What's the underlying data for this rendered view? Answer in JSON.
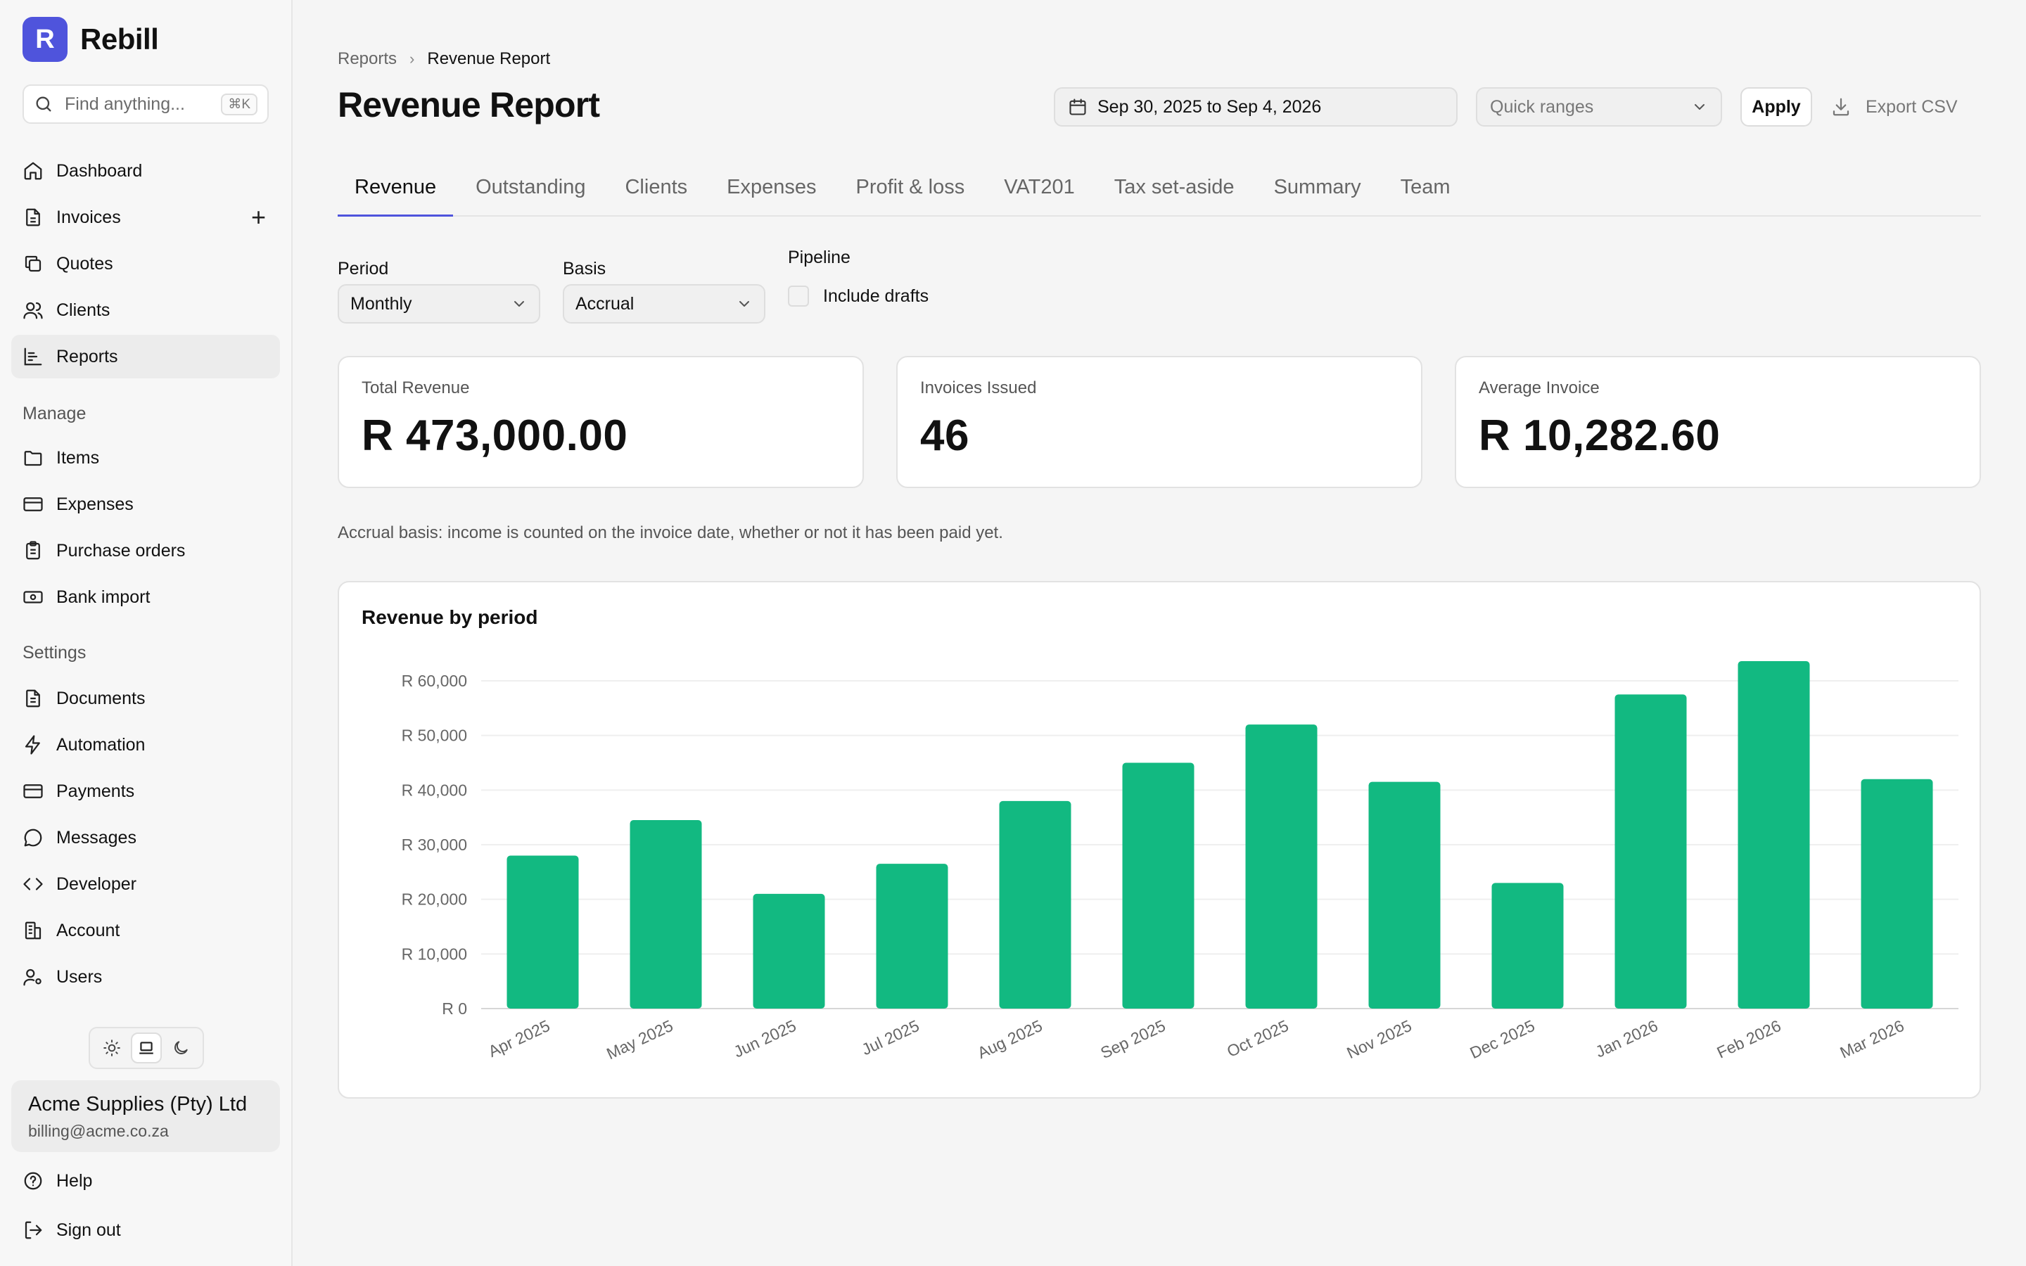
{
  "brand": {
    "logo_letter": "R",
    "name": "Rebill"
  },
  "search": {
    "placeholder": "Find anything...",
    "shortcut": "⌘K"
  },
  "sidebar": {
    "main_items": [
      {
        "label": "Dashboard",
        "icon": "home-icon"
      },
      {
        "label": "Invoices",
        "icon": "file-icon",
        "action": "+"
      },
      {
        "label": "Quotes",
        "icon": "copy-icon"
      },
      {
        "label": "Clients",
        "icon": "users-icon"
      },
      {
        "label": "Reports",
        "icon": "bar-chart-icon",
        "active": true
      }
    ],
    "manage_label": "Manage",
    "manage_items": [
      {
        "label": "Items",
        "icon": "folder-icon"
      },
      {
        "label": "Expenses",
        "icon": "credit-card-icon"
      },
      {
        "label": "Purchase orders",
        "icon": "clipboard-icon"
      },
      {
        "label": "Bank import",
        "icon": "banknote-icon"
      }
    ],
    "settings_label": "Settings",
    "settings_items": [
      {
        "label": "Documents",
        "icon": "document-icon"
      },
      {
        "label": "Automation",
        "icon": "zap-icon"
      },
      {
        "label": "Payments",
        "icon": "card-icon"
      },
      {
        "label": "Messages",
        "icon": "message-icon"
      },
      {
        "label": "Developer",
        "icon": "code-icon"
      },
      {
        "label": "Account",
        "icon": "building-icon"
      },
      {
        "label": "Users",
        "icon": "user-cog-icon"
      }
    ],
    "theme_selected": "system"
  },
  "account": {
    "name": "Acme Supplies (Pty) Ltd",
    "email": "billing@acme.co.za"
  },
  "footer_items": [
    {
      "label": "Help",
      "icon": "help-icon"
    },
    {
      "label": "Sign out",
      "icon": "sign-out-icon"
    }
  ],
  "breadcrumb": {
    "parent": "Reports",
    "current": "Revenue Report"
  },
  "header": {
    "title": "Revenue Report",
    "date_range": "Sep 30, 2025 to Sep 4, 2026",
    "quick_ranges_placeholder": "Quick ranges",
    "apply_label": "Apply",
    "export_label": "Export CSV"
  },
  "tabs": [
    {
      "label": "Revenue",
      "active": true
    },
    {
      "label": "Outstanding"
    },
    {
      "label": "Clients"
    },
    {
      "label": "Expenses"
    },
    {
      "label": "Profit & loss"
    },
    {
      "label": "VAT201"
    },
    {
      "label": "Tax set-aside"
    },
    {
      "label": "Summary"
    },
    {
      "label": "Team"
    }
  ],
  "filters": {
    "period_label": "Period",
    "period_value": "Monthly",
    "basis_label": "Basis",
    "basis_value": "Accrual",
    "pipeline_label": "Pipeline",
    "include_drafts_label": "Include drafts",
    "include_drafts": false
  },
  "stats": [
    {
      "label": "Total Revenue",
      "value": "R 473,000.00"
    },
    {
      "label": "Invoices Issued",
      "value": "46"
    },
    {
      "label": "Average Invoice",
      "value": "R 10,282.60"
    }
  ],
  "basis_note": "Accrual basis: income is counted on the invoice date, whether or not it has been paid yet.",
  "colors": {
    "accent": "#4f54dc",
    "bar": "#12b981",
    "grid": "#efefef"
  },
  "chart_data": {
    "type": "bar",
    "title": "Revenue by period",
    "categories": [
      "Apr 2025",
      "May 2025",
      "Jun 2025",
      "Jul 2025",
      "Aug 2025",
      "Sep 2025",
      "Oct 2025",
      "Nov 2025",
      "Dec 2025",
      "Jan 2026",
      "Feb 2026",
      "Mar 2026"
    ],
    "values": [
      28000,
      34500,
      21000,
      26500,
      38000,
      45000,
      52000,
      41500,
      23000,
      57500,
      64000,
      42000
    ],
    "ylim": [
      0,
      60000
    ],
    "yticks": [
      0,
      10000,
      20000,
      30000,
      40000,
      50000,
      60000
    ],
    "ytick_labels": [
      "R 0",
      "R 10,000",
      "R 20,000",
      "R 30,000",
      "R 40,000",
      "R 50,000",
      "R 60,000"
    ],
    "grid": true,
    "legend": "none"
  }
}
